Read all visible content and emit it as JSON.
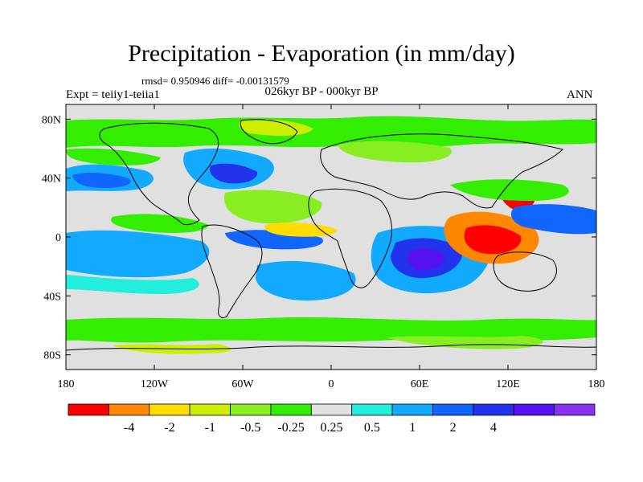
{
  "title": "Precipitation - Evaporation (in mm/day)",
  "stats": "rmsd= 0.950946  diff= -0.00131579",
  "experiment": "Expt = teiiy1-teiia1",
  "period": "026kyr BP - 000kyr BP",
  "season": "ANN",
  "lat_labels": [
    "80N",
    "40N",
    "0",
    "40S",
    "80S"
  ],
  "lat_values": [
    80,
    40,
    0,
    -40,
    -80
  ],
  "lon_labels": [
    "180",
    "120W",
    "60W",
    "0",
    "60E",
    "120E",
    "180"
  ],
  "lon_values": [
    -180,
    -120,
    -60,
    0,
    60,
    120,
    180
  ],
  "colorbar": {
    "labels": [
      "-4",
      "-2",
      "-1",
      "-0.5",
      "-0.25",
      "0.25",
      "0.5",
      "1",
      "2",
      "4"
    ],
    "colors": [
      "#ff0000",
      "#ff8800",
      "#ffdd00",
      "#ccee00",
      "#88ee22",
      "#33ee00",
      "#e0e0e0",
      "#22eedd",
      "#11aaff",
      "#1166ff",
      "#2233ee",
      "#5511ee",
      "#8833ee"
    ]
  },
  "map_colors": {
    "background": "#e0e0e0",
    "coast": "#000000"
  }
}
